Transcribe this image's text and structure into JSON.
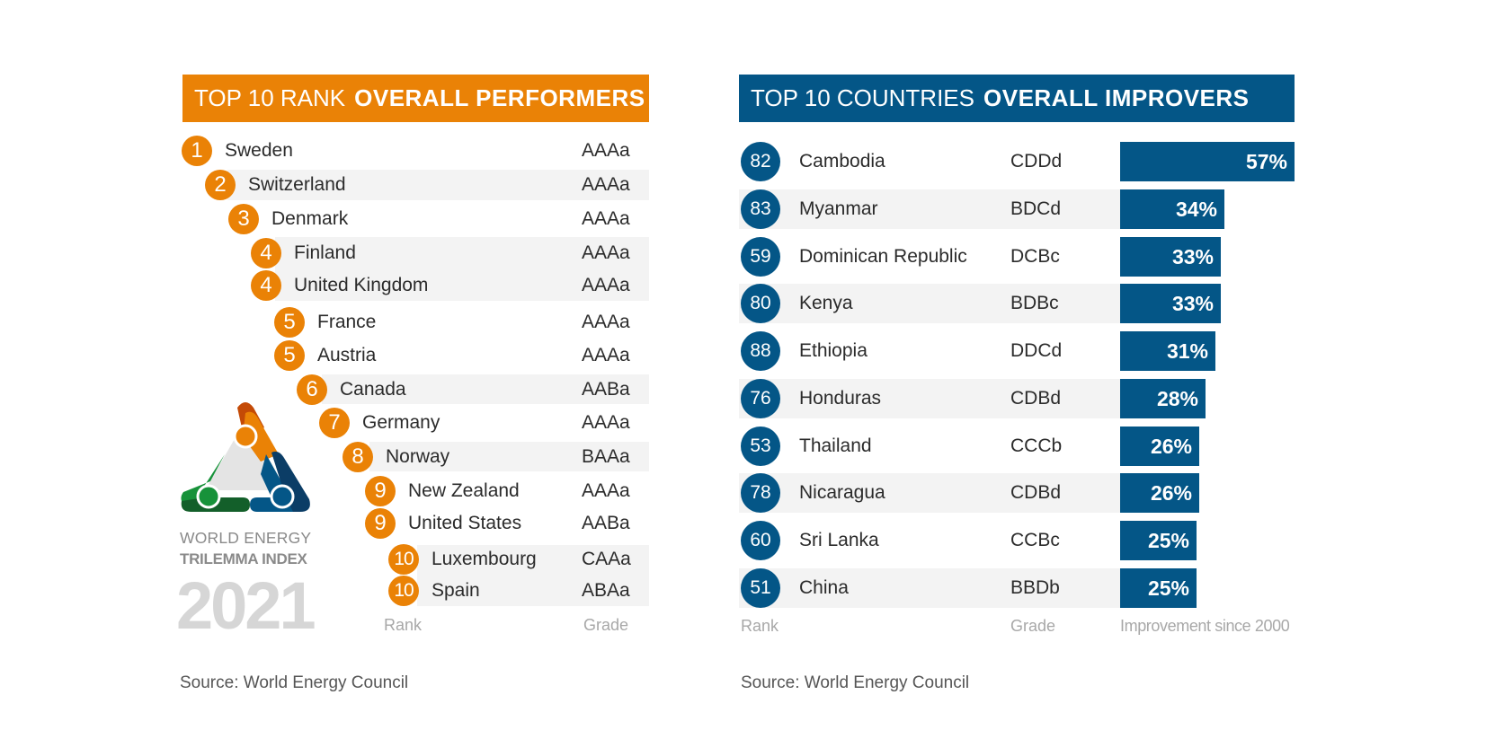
{
  "left_panel": {
    "title_light": "TOP 10 RANK",
    "title_bold": "OVERALL PERFORMERS",
    "rows": [
      {
        "rank": "1",
        "country": "Sweden",
        "grade": "AAAa"
      },
      {
        "rank": "2",
        "country": "Switzerland",
        "grade": "AAAa"
      },
      {
        "rank": "3",
        "country": "Denmark",
        "grade": "AAAa"
      },
      {
        "rank": "4",
        "country": "Finland",
        "grade": "AAAa"
      },
      {
        "rank": "4",
        "country": "United Kingdom",
        "grade": "AAAa"
      },
      {
        "rank": "5",
        "country": "France",
        "grade": "AAAa"
      },
      {
        "rank": "5",
        "country": "Austria",
        "grade": "AAAa"
      },
      {
        "rank": "6",
        "country": "Canada",
        "grade": "AABa"
      },
      {
        "rank": "7",
        "country": "Germany",
        "grade": "AAAa"
      },
      {
        "rank": "8",
        "country": "Norway",
        "grade": "BAAa"
      },
      {
        "rank": "9",
        "country": "New Zealand",
        "grade": "AAAa"
      },
      {
        "rank": "9",
        "country": "United States",
        "grade": "AABa"
      },
      {
        "rank": "10",
        "country": "Luxembourg",
        "grade": "CAAa"
      },
      {
        "rank": "10",
        "country": "Spain",
        "grade": "ABAa"
      }
    ],
    "footer_rank": "Rank",
    "footer_grade": "Grade",
    "source": "Source: World Energy Council",
    "accent_color": "#ea8206"
  },
  "logo": {
    "line1": "WORLD ENERGY",
    "line2": "TRILEMMA INDEX",
    "year": "2021"
  },
  "chart_data": {
    "type": "bar",
    "title": "TOP 10 COUNTRIES OVERALL IMPROVERS",
    "title_light": "TOP 10 COUNTRIES",
    "title_bold": "OVERALL IMPROVERS",
    "xlabel": "Improvement since 2000",
    "orientation": "horizontal",
    "unit": "%",
    "xlim": [
      0,
      57
    ],
    "categories": [
      "Cambodia",
      "Myanmar",
      "Dominican Republic",
      "Kenya",
      "Ethiopia",
      "Honduras",
      "Thailand",
      "Nicaragua",
      "Sri Lanka",
      "China"
    ],
    "ranks": [
      "82",
      "83",
      "59",
      "80",
      "88",
      "76",
      "53",
      "78",
      "60",
      "51"
    ],
    "grades": [
      "CDDd",
      "BDCd",
      "DCBc",
      "BDBc",
      "DDCd",
      "CDBd",
      "CCCb",
      "CDBd",
      "CCBc",
      "BBDb"
    ],
    "values": [
      57,
      34,
      33,
      33,
      31,
      28,
      26,
      26,
      25,
      25
    ],
    "labels": [
      "57%",
      "34%",
      "33%",
      "33%",
      "31%",
      "28%",
      "26%",
      "26%",
      "25%",
      "25%"
    ],
    "footer_rank": "Rank",
    "footer_grade": "Grade",
    "bar_color": "#045687",
    "grid": false
  },
  "right_source": "Source: World Energy Council"
}
